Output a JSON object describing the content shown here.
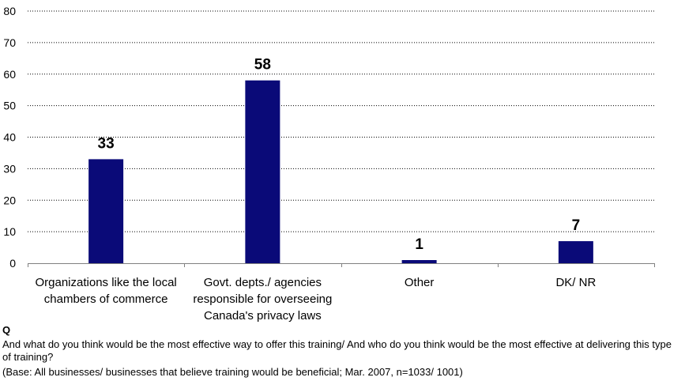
{
  "chart_data": {
    "type": "bar",
    "categories": [
      "Organizations like the local\nchambers of commerce",
      "Govt. depts./ agencies\nresponsible for overseeing\nCanada's privacy laws",
      "Other",
      "DK/ NR"
    ],
    "values": [
      33,
      58,
      1,
      7
    ],
    "value_labels": [
      "33",
      "58",
      "1",
      "7"
    ],
    "ylim": [
      0,
      80
    ],
    "yticks": [
      0,
      10,
      20,
      30,
      40,
      50,
      60,
      70,
      80
    ],
    "grid": true,
    "grid_style": "dotted",
    "bar_color": "#0a0a78",
    "title": "",
    "xlabel": "",
    "ylabel": ""
  },
  "footnote": {
    "label": "Q",
    "question": "And what do you think would be the most effective way to offer this training/ And who do you think would be the most effective at delivering this type of training?",
    "base": "(Base: All businesses/ businesses that believe training would be beneficial; Mar. 2007, n=1033/ 1001)"
  }
}
